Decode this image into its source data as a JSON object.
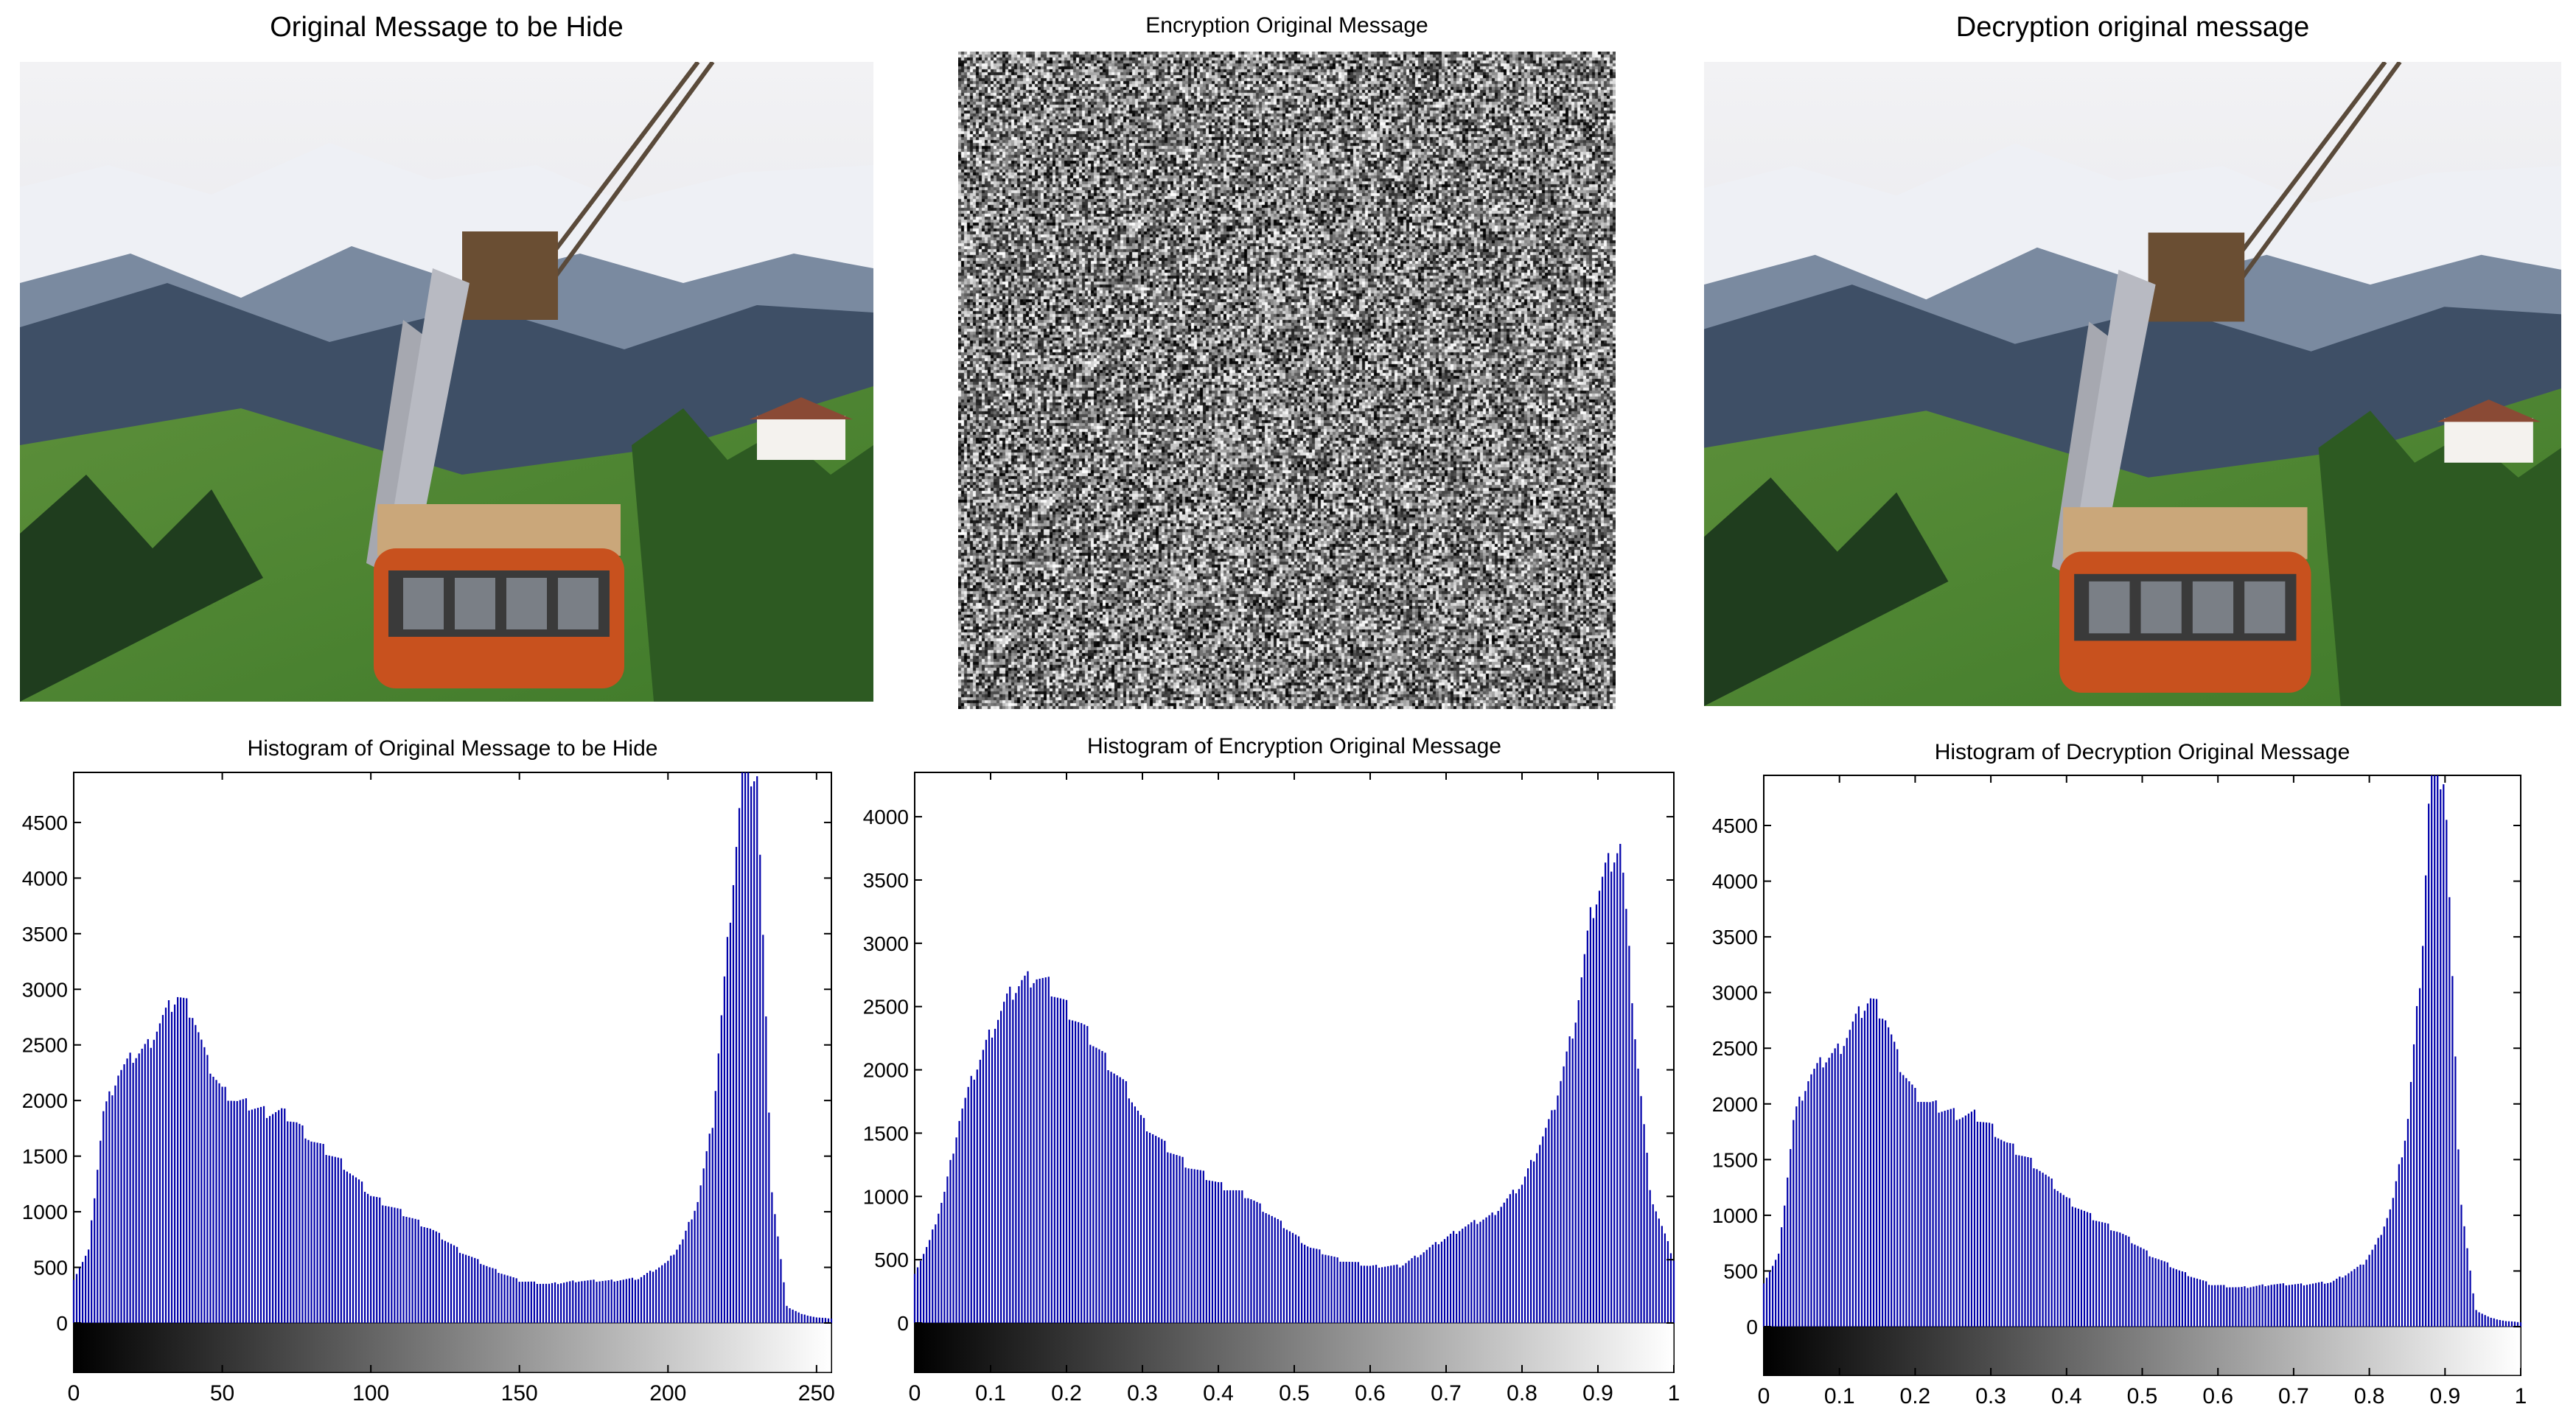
{
  "panels": {
    "p1": {
      "title": "Original Message to be Hide"
    },
    "p2": {
      "title": "Encryption Original Message"
    },
    "p3": {
      "title": "Decryption original message"
    }
  },
  "chart_data": [
    {
      "type": "bar",
      "title": "Histogram of Original Message to be Hide",
      "xlim": [
        0,
        255
      ],
      "ylim": [
        0,
        4950
      ],
      "xticks": [
        0,
        50,
        100,
        150,
        200,
        250
      ],
      "xtick_labels": [
        "0",
        "50",
        "100",
        "150",
        "200",
        "250"
      ],
      "yticks": [
        0,
        500,
        1000,
        1500,
        2000,
        2500,
        3000,
        3500,
        4000,
        4500
      ],
      "ytick_labels": [
        "0",
        "500",
        "1000",
        "1500",
        "2000",
        "2500",
        "3000",
        "3500",
        "4000",
        "4500"
      ],
      "colorbar": "grayscale",
      "bar_color": "#0000aa",
      "x": [
        0,
        5,
        10,
        15,
        20,
        25,
        30,
        35,
        40,
        45,
        50,
        55,
        60,
        65,
        70,
        75,
        80,
        85,
        90,
        95,
        100,
        110,
        120,
        130,
        140,
        150,
        160,
        170,
        180,
        190,
        200,
        205,
        210,
        215,
        220,
        225,
        230,
        235,
        240,
        245,
        250,
        255
      ],
      "values": [
        400,
        650,
        1900,
        2250,
        2400,
        2500,
        2750,
        2950,
        2800,
        2350,
        2100,
        2000,
        1950,
        1900,
        1900,
        1800,
        1650,
        1550,
        1450,
        1300,
        1150,
        1000,
        850,
        650,
        500,
        380,
        350,
        380,
        380,
        400,
        550,
        750,
        1100,
        1800,
        3400,
        4950,
        4950,
        1200,
        150,
        80,
        50,
        40
      ]
    },
    {
      "type": "bar",
      "title": "Histogram of Encryption Original Message",
      "xlim": [
        0,
        1
      ],
      "ylim": [
        0,
        4350
      ],
      "xticks": [
        0,
        0.1,
        0.2,
        0.3,
        0.4,
        0.5,
        0.6,
        0.7,
        0.8,
        0.9,
        1
      ],
      "xtick_labels": [
        "0",
        "0.1",
        "0.2",
        "0.3",
        "0.4",
        "0.5",
        "0.6",
        "0.7",
        "0.8",
        "0.9",
        "1"
      ],
      "yticks": [
        0,
        500,
        1000,
        1500,
        2000,
        2500,
        3000,
        3500,
        4000
      ],
      "ytick_labels": [
        "0",
        "500",
        "1000",
        "1500",
        "2000",
        "2500",
        "3000",
        "3500",
        "4000"
      ],
      "colorbar": "grayscale",
      "bar_color": "#0000aa",
      "x": [
        0,
        0.02,
        0.04,
        0.06,
        0.08,
        0.1,
        0.12,
        0.14,
        0.16,
        0.18,
        0.2,
        0.22,
        0.25,
        0.28,
        0.3,
        0.33,
        0.36,
        0.4,
        0.44,
        0.48,
        0.52,
        0.56,
        0.6,
        0.64,
        0.68,
        0.72,
        0.76,
        0.8,
        0.84,
        0.87,
        0.89,
        0.91,
        0.93,
        0.95,
        0.97,
        1
      ],
      "values": [
        400,
        650,
        1050,
        1650,
        2000,
        2300,
        2550,
        2700,
        2750,
        2650,
        2500,
        2350,
        2100,
        1850,
        1600,
        1400,
        1250,
        1100,
        1000,
        800,
        600,
        500,
        450,
        450,
        600,
        750,
        850,
        1100,
        1650,
        2400,
        3200,
        3600,
        3800,
        2200,
        1000,
        500
      ]
    },
    {
      "type": "bar",
      "title": "Histogram of Decryption Original Message",
      "xlim": [
        0,
        1
      ],
      "ylim": [
        0,
        4950
      ],
      "xticks": [
        0,
        0.1,
        0.2,
        0.3,
        0.4,
        0.5,
        0.6,
        0.7,
        0.8,
        0.9,
        1
      ],
      "xtick_labels": [
        "0",
        "0.1",
        "0.2",
        "0.3",
        "0.4",
        "0.5",
        "0.6",
        "0.7",
        "0.8",
        "0.9",
        "1"
      ],
      "yticks": [
        0,
        500,
        1000,
        1500,
        2000,
        2500,
        3000,
        3500,
        4000,
        4500
      ],
      "ytick_labels": [
        "0",
        "500",
        "1000",
        "1500",
        "2000",
        "2500",
        "3000",
        "3500",
        "4000",
        "4500"
      ],
      "colorbar": "grayscale",
      "bar_color": "#0000aa",
      "x": [
        0,
        0.02,
        0.04,
        0.06,
        0.08,
        0.1,
        0.12,
        0.14,
        0.16,
        0.18,
        0.2,
        0.22,
        0.24,
        0.26,
        0.28,
        0.3,
        0.32,
        0.34,
        0.36,
        0.38,
        0.4,
        0.43,
        0.47,
        0.51,
        0.55,
        0.59,
        0.63,
        0.67,
        0.71,
        0.75,
        0.79,
        0.81,
        0.83,
        0.85,
        0.87,
        0.88,
        0.9,
        0.92,
        0.94,
        0.96,
        0.98,
        1
      ],
      "values": [
        400,
        650,
        1900,
        2250,
        2400,
        2500,
        2750,
        2950,
        2800,
        2350,
        2100,
        2000,
        1950,
        1900,
        1900,
        1800,
        1650,
        1550,
        1450,
        1300,
        1150,
        1000,
        850,
        650,
        500,
        380,
        350,
        380,
        380,
        400,
        550,
        750,
        1100,
        1800,
        3400,
        4950,
        4950,
        1200,
        150,
        80,
        50,
        40
      ]
    }
  ]
}
